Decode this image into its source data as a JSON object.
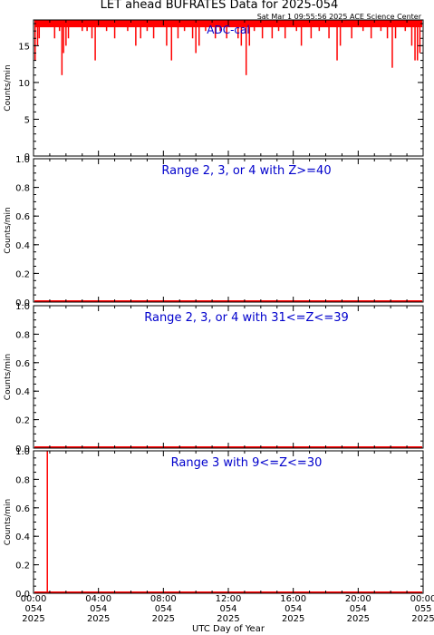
{
  "title": "LET ahead BUFRATES Data for 2025-054",
  "timestamp": "Sat Mar  1 09:55:56 2025 ACE Science Center",
  "xlabel": "UTC Day of Year",
  "colors": {
    "data": "#ff0000",
    "label": "#0000cc",
    "axis": "#000000"
  },
  "chart_data": [
    {
      "type": "line",
      "panel_label": "ADC-cal",
      "ylabel": "Counts/min",
      "ylim": [
        0,
        18.5
      ],
      "yticks": [
        0,
        5,
        10,
        15
      ],
      "xlim": [
        0,
        24
      ],
      "baseline": 18,
      "dips": [
        {
          "x": 0.1,
          "y": 13
        },
        {
          "x": 0.25,
          "y": 15
        },
        {
          "x": 0.35,
          "y": 16
        },
        {
          "x": 1.3,
          "y": 16
        },
        {
          "x": 1.6,
          "y": 17
        },
        {
          "x": 1.75,
          "y": 11
        },
        {
          "x": 1.85,
          "y": 14
        },
        {
          "x": 2.0,
          "y": 15
        },
        {
          "x": 2.15,
          "y": 16
        },
        {
          "x": 3.0,
          "y": 17
        },
        {
          "x": 3.3,
          "y": 17
        },
        {
          "x": 3.6,
          "y": 16
        },
        {
          "x": 3.8,
          "y": 13
        },
        {
          "x": 4.5,
          "y": 17
        },
        {
          "x": 5.0,
          "y": 16
        },
        {
          "x": 5.8,
          "y": 17
        },
        {
          "x": 6.3,
          "y": 15
        },
        {
          "x": 6.6,
          "y": 16
        },
        {
          "x": 7.0,
          "y": 17
        },
        {
          "x": 7.4,
          "y": 16
        },
        {
          "x": 8.2,
          "y": 15
        },
        {
          "x": 8.5,
          "y": 13
        },
        {
          "x": 8.9,
          "y": 16
        },
        {
          "x": 9.3,
          "y": 17
        },
        {
          "x": 9.8,
          "y": 16
        },
        {
          "x": 10.0,
          "y": 14
        },
        {
          "x": 10.2,
          "y": 15
        },
        {
          "x": 10.6,
          "y": 17
        },
        {
          "x": 11.2,
          "y": 16
        },
        {
          "x": 11.5,
          "y": 17
        },
        {
          "x": 11.9,
          "y": 16
        },
        {
          "x": 12.6,
          "y": 16
        },
        {
          "x": 12.8,
          "y": 15
        },
        {
          "x": 13.1,
          "y": 11
        },
        {
          "x": 13.3,
          "y": 15
        },
        {
          "x": 13.6,
          "y": 17
        },
        {
          "x": 14.1,
          "y": 16
        },
        {
          "x": 14.7,
          "y": 16
        },
        {
          "x": 15.1,
          "y": 17
        },
        {
          "x": 15.5,
          "y": 16
        },
        {
          "x": 16.2,
          "y": 17
        },
        {
          "x": 16.5,
          "y": 15
        },
        {
          "x": 17.1,
          "y": 16
        },
        {
          "x": 17.6,
          "y": 17
        },
        {
          "x": 18.2,
          "y": 16
        },
        {
          "x": 18.7,
          "y": 13
        },
        {
          "x": 18.9,
          "y": 15
        },
        {
          "x": 19.6,
          "y": 16
        },
        {
          "x": 20.3,
          "y": 17
        },
        {
          "x": 20.8,
          "y": 16
        },
        {
          "x": 21.4,
          "y": 17
        },
        {
          "x": 21.8,
          "y": 16
        },
        {
          "x": 22.1,
          "y": 12
        },
        {
          "x": 22.3,
          "y": 16
        },
        {
          "x": 22.9,
          "y": 17
        },
        {
          "x": 23.3,
          "y": 15
        },
        {
          "x": 23.5,
          "y": 13
        },
        {
          "x": 23.65,
          "y": 13
        },
        {
          "x": 23.8,
          "y": 14
        }
      ]
    },
    {
      "type": "line",
      "panel_label": "Range 2, 3, or 4 with Z>=40",
      "ylabel": "Counts/min",
      "ylim": [
        0,
        1.0
      ],
      "yticks": [
        0.0,
        0.2,
        0.4,
        0.6,
        0.8,
        1.0
      ],
      "ytick_labels": [
        "0.0",
        "0.2",
        "0.4",
        "0.6",
        "0.8",
        "1.0"
      ],
      "xlim": [
        0,
        24
      ],
      "baseline": 0,
      "spikes": []
    },
    {
      "type": "line",
      "panel_label": "Range 2, 3, or 4 with 31<=Z<=39",
      "ylabel": "Counts/min",
      "ylim": [
        0,
        1.0
      ],
      "yticks": [
        0.0,
        0.2,
        0.4,
        0.6,
        0.8,
        1.0
      ],
      "ytick_labels": [
        "0.0",
        "0.2",
        "0.4",
        "0.6",
        "0.8",
        "1.0"
      ],
      "xlim": [
        0,
        24
      ],
      "baseline": 0,
      "spikes": []
    },
    {
      "type": "line",
      "panel_label": "Range 3 with 9<=Z<=30",
      "ylabel": "Counts/min",
      "ylim": [
        0,
        1.0
      ],
      "yticks": [
        0.0,
        0.2,
        0.4,
        0.6,
        0.8,
        1.0
      ],
      "ytick_labels": [
        "0.0",
        "0.2",
        "0.4",
        "0.6",
        "0.8",
        "1.0"
      ],
      "xlim": [
        0,
        24
      ],
      "baseline": 0,
      "spikes": [
        {
          "x": 0.85,
          "y": 1.0
        }
      ]
    }
  ],
  "xticks": [
    {
      "x": 0,
      "time": "00:00",
      "doy": "054",
      "year": "2025"
    },
    {
      "x": 4,
      "time": "04:00",
      "doy": "054",
      "year": "2025"
    },
    {
      "x": 8,
      "time": "08:00",
      "doy": "054",
      "year": "2025"
    },
    {
      "x": 12,
      "time": "12:00",
      "doy": "054",
      "year": "2025"
    },
    {
      "x": 16,
      "time": "16:00",
      "doy": "054",
      "year": "2025"
    },
    {
      "x": 20,
      "time": "20:00",
      "doy": "054",
      "year": "2025"
    },
    {
      "x": 24,
      "time": "00:00",
      "doy": "055",
      "year": "2025"
    }
  ]
}
